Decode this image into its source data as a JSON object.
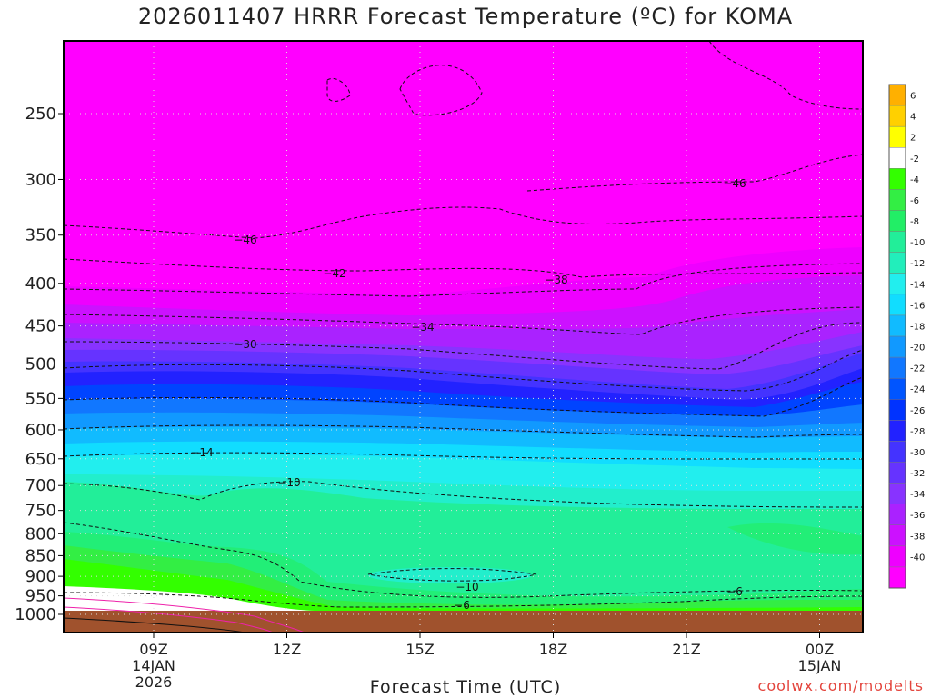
{
  "chart_data": {
    "type": "heatmap",
    "title": "2026011407 HRRR Forecast Temperature (ºC) for KOMA",
    "xlabel": "Forecast Time (UTC)",
    "ylabel": "",
    "y_scale": "log (pressure, hPa)",
    "y_ticks": [
      250,
      300,
      350,
      400,
      450,
      500,
      550,
      600,
      650,
      700,
      750,
      800,
      850,
      900,
      950,
      1000
    ],
    "x_ticks": [
      {
        "label": "09Z",
        "sub1": "14JAN",
        "sub2": "2026"
      },
      {
        "label": "12Z",
        "sub1": "",
        "sub2": ""
      },
      {
        "label": "15Z",
        "sub1": "",
        "sub2": ""
      },
      {
        "label": "18Z",
        "sub1": "",
        "sub2": ""
      },
      {
        "label": "21Z",
        "sub1": "",
        "sub2": ""
      },
      {
        "label": "00Z",
        "sub1": "15JAN",
        "sub2": ""
      }
    ],
    "colorbar_levels": [
      6,
      4,
      2,
      -2,
      -4,
      -6,
      -8,
      -10,
      -12,
      -14,
      -16,
      -18,
      -20,
      -22,
      -24,
      -26,
      -28,
      -30,
      -32,
      -34,
      -36,
      -38,
      -40
    ],
    "colorbar_colors": [
      "#ffb000",
      "#ffd000",
      "#ffff00",
      "#ffffff",
      "#33ff00",
      "#33ee44",
      "#22ee66",
      "#22ee99",
      "#22eebb",
      "#22eeee",
      "#11ddff",
      "#11bbff",
      "#1199ff",
      "#1177ff",
      "#0055ff",
      "#0033ff",
      "#2222ff",
      "#4433ff",
      "#6633ff",
      "#8833ff",
      "#aa22ff",
      "#cc11ff",
      "#ee00ff",
      "#ff00ff"
    ],
    "contour_labels": [
      "-46",
      "-46",
      "-42",
      "-38",
      "-34",
      "-30",
      "-14",
      "-10",
      "-10",
      "-6",
      "-6"
    ],
    "ground_color": "#a0522d",
    "grid": true
  },
  "watermark": "coolwx.com/modelts"
}
